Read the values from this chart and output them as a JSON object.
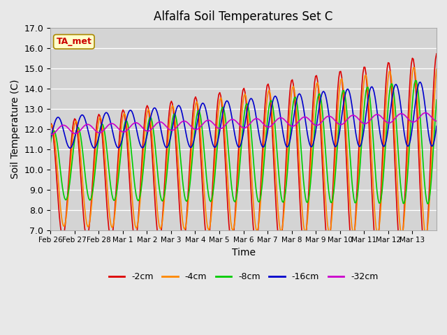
{
  "title": "Alfalfa Soil Temperatures Set C",
  "xlabel": "Time",
  "ylabel": "Soil Temperature (C)",
  "ylim": [
    7.0,
    17.0
  ],
  "yticks": [
    7.0,
    8.0,
    9.0,
    10.0,
    11.0,
    12.0,
    13.0,
    14.0,
    15.0,
    16.0,
    17.0
  ],
  "annotation_label": "TA_met",
  "fig_bg_color": "#e8e8e8",
  "plot_bg_color": "#d4d4d4",
  "colors": {
    "-2cm": "#dd0000",
    "-4cm": "#ff8800",
    "-8cm": "#00cc00",
    "-16cm": "#0000cc",
    "-32cm": "#cc00cc"
  },
  "legend_labels": [
    "-2cm",
    "-4cm",
    "-8cm",
    "-16cm",
    "-32cm"
  ],
  "x_tick_labels": [
    "Feb 26",
    "Feb 27",
    "Feb 28",
    "Mar 1",
    "Mar 2",
    "Mar 3",
    "Mar 4",
    "Mar 5",
    "Mar 6",
    "Mar 7",
    "Mar 8",
    "Mar 9",
    "Mar 10",
    "Mar 11",
    "Mar 12",
    "Mar 13"
  ],
  "n_days": 16
}
